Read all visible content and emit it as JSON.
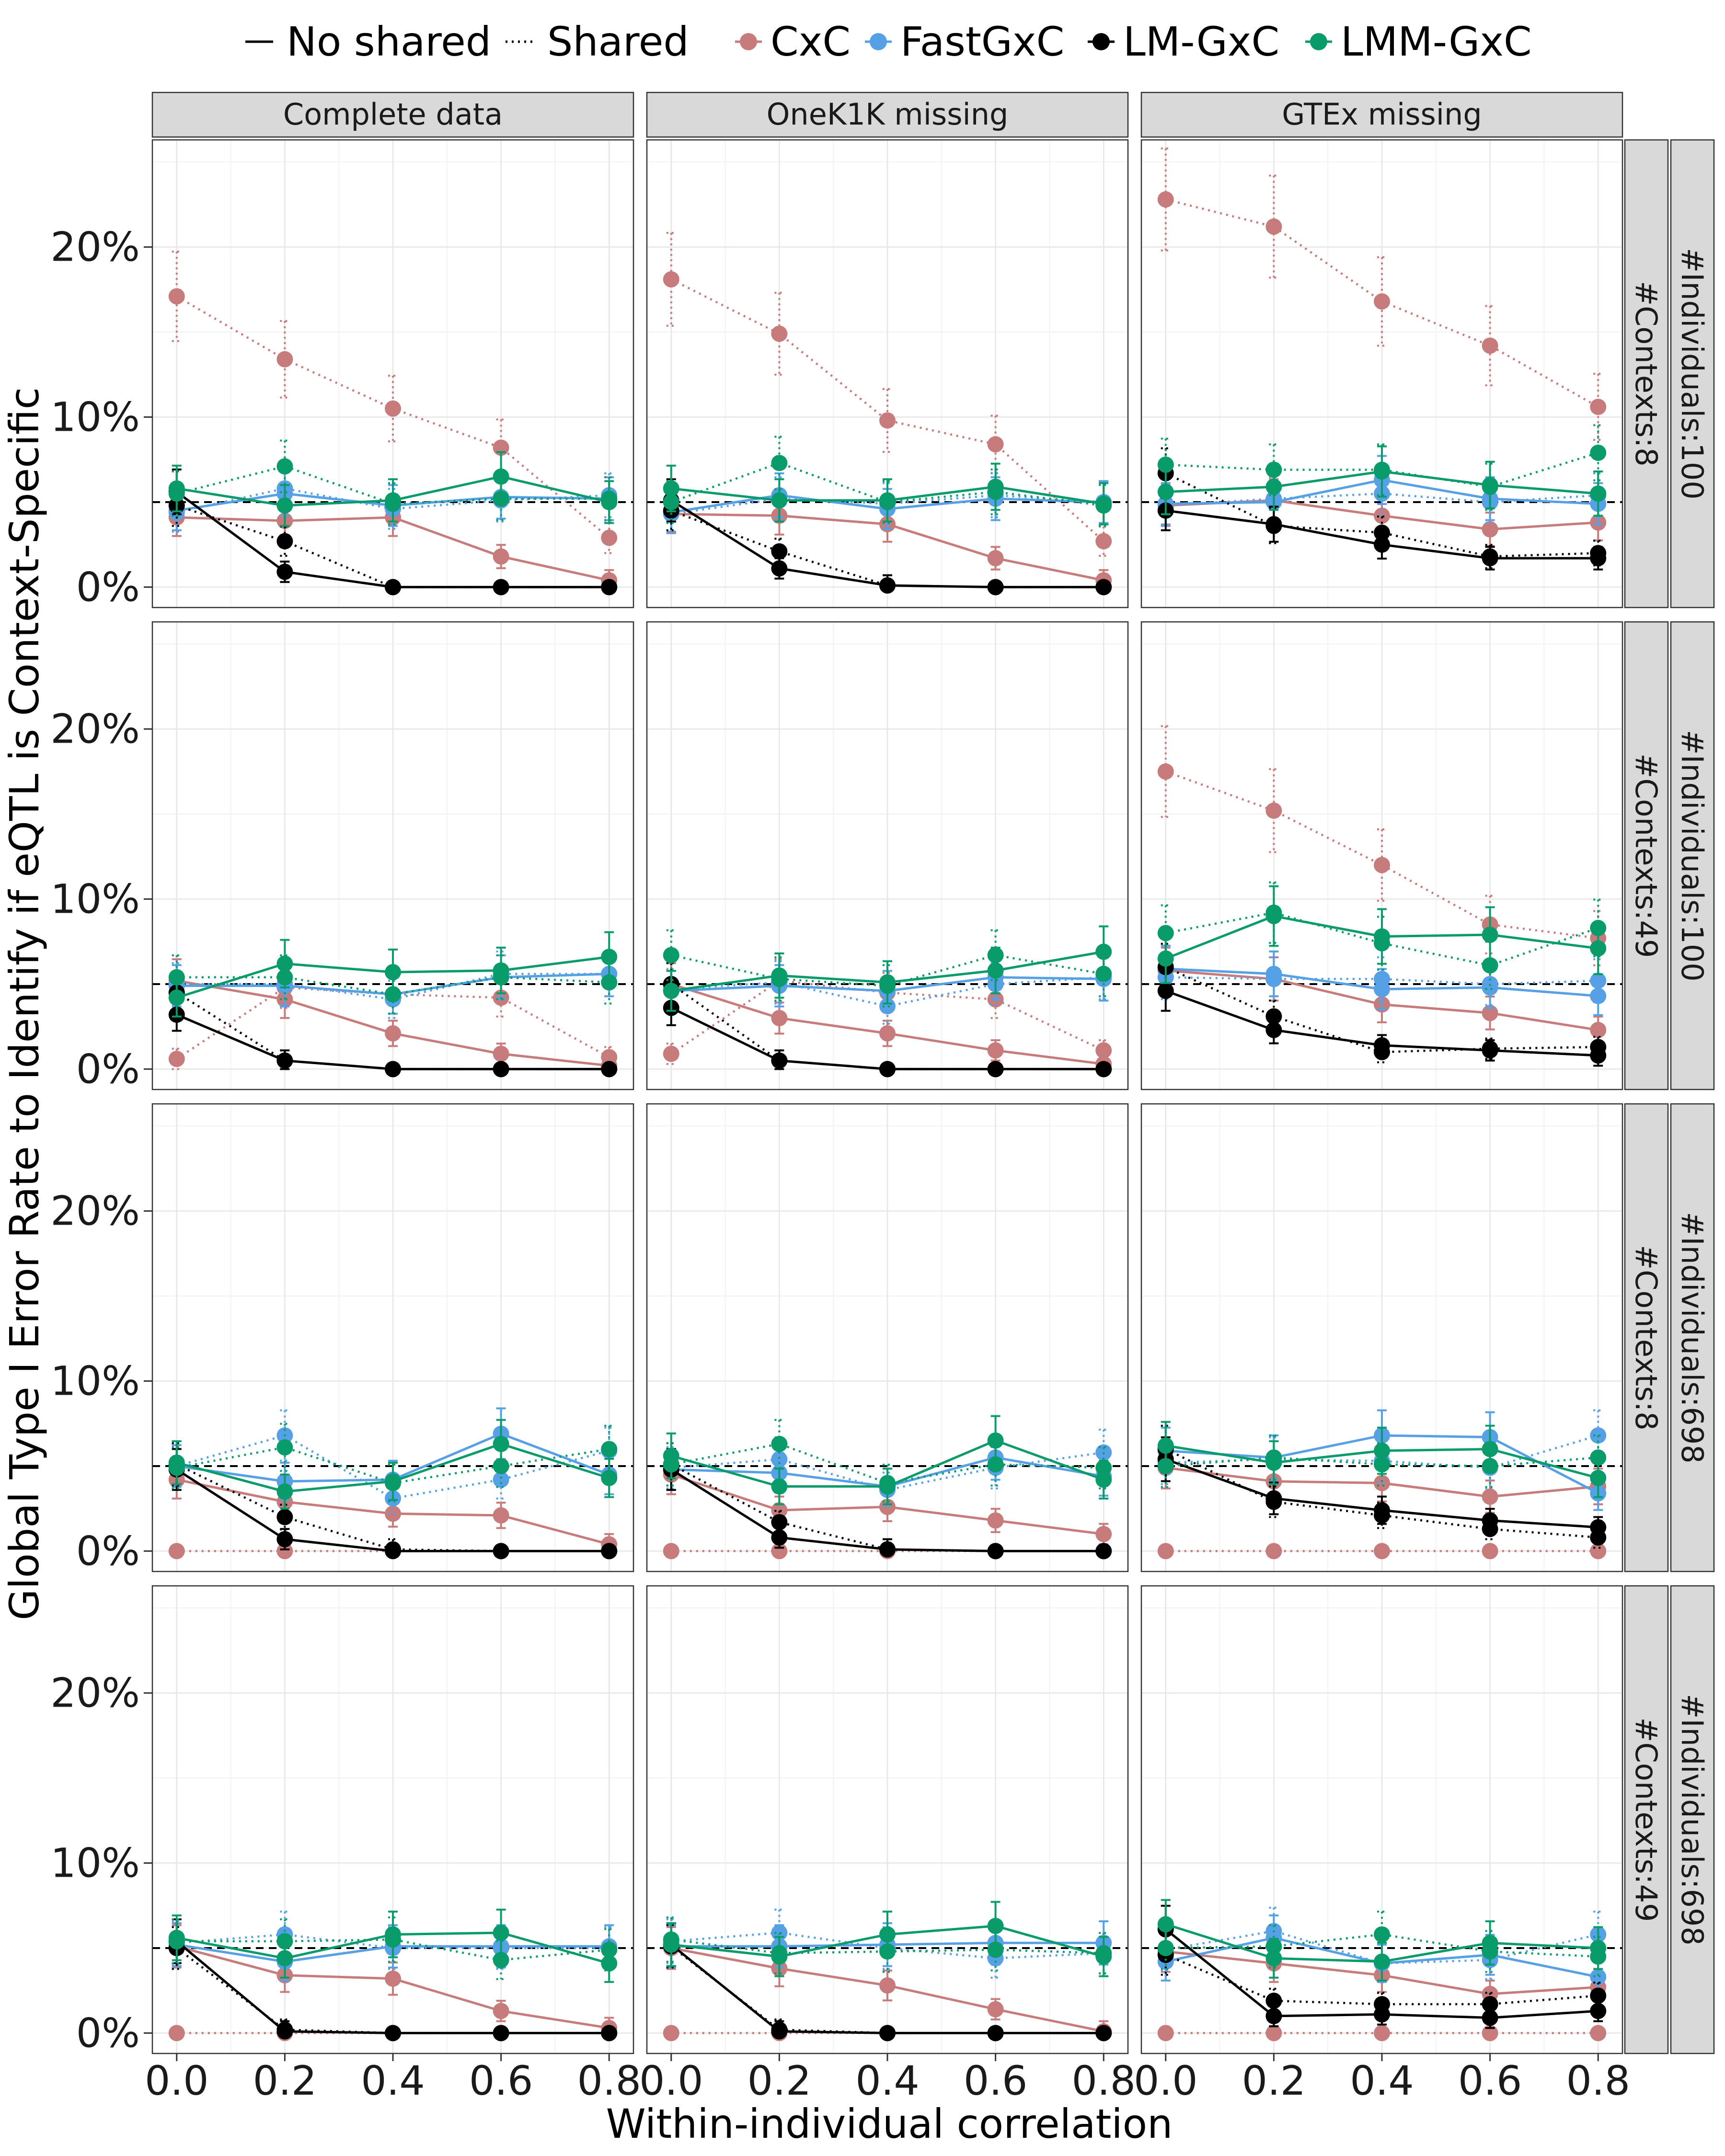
{
  "chart_data": {
    "type": "line",
    "x": [
      0.0,
      0.2,
      0.4,
      0.6,
      0.8
    ],
    "x_tick_labels": [
      "0.0",
      "0.2",
      "0.4",
      "0.6",
      "0.8"
    ],
    "y_tick_labels": [
      "0%",
      "10%",
      "20%"
    ],
    "y_ticks": [
      0,
      10,
      20
    ],
    "xlim": [
      -0.045,
      0.845
    ],
    "ylim": [
      -1.2,
      26.3
    ],
    "xlabel": "Within-individual correlation",
    "ylabel": "Global Type I Error Rate to Identify if eQTL is Context-Specific",
    "reference_line": 5,
    "grid": true,
    "legend_position": "top",
    "legend": {
      "linetypes": [
        {
          "label": "No shared",
          "dash": "solid"
        },
        {
          "label": "Shared",
          "dash": "dotted"
        }
      ],
      "methods": [
        {
          "label": "CxC",
          "color": "#c77c7b"
        },
        {
          "label": "FastGxC",
          "color": "#56a0e6"
        },
        {
          "label": "LM-GxC",
          "color": "#000000"
        },
        {
          "label": "LMM-GxC",
          "color": "#0a9b6b"
        }
      ]
    },
    "columns": [
      "Complete data",
      "OneK1K missing",
      "GTEx missing"
    ],
    "row_strips_contexts": [
      "#Contexts:8",
      "#Contexts:49",
      "#Contexts:8",
      "#Contexts:49"
    ],
    "row_strips_individuals": [
      "#Individuals:100",
      "#Individuals:100",
      "#Individuals:698",
      "#Individuals:698"
    ],
    "panels": [
      [
        {
          "CxC": {
            "no": [
              4.1,
              3.9,
              4.1,
              1.8,
              0.4
            ],
            "sh": [
              17.1,
              13.4,
              10.5,
              8.2,
              2.9
            ]
          },
          "FastGxC": {
            "no": [
              4.5,
              5.5,
              4.8,
              5.3,
              5.2
            ],
            "sh": [
              4.4,
              5.8,
              4.6,
              5.1,
              5.4
            ]
          },
          "LM-GxC": {
            "no": [
              5.6,
              0.9,
              0.0,
              0.0,
              0.0
            ],
            "sh": [
              4.8,
              2.7,
              0.0,
              0.0,
              0.0
            ]
          },
          "LMM-GxC": {
            "no": [
              5.8,
              4.8,
              5.1,
              6.5,
              5.0
            ],
            "sh": [
              5.5,
              7.1,
              4.9,
              5.2,
              5.2
            ]
          }
        },
        {
          "CxC": {
            "no": [
              4.3,
              4.2,
              3.7,
              1.7,
              0.4
            ],
            "sh": [
              18.1,
              14.9,
              9.8,
              8.4,
              2.7
            ]
          },
          "FastGxC": {
            "no": [
              4.4,
              5.4,
              4.6,
              5.2,
              5.0
            ],
            "sh": [
              4.3,
              5.2,
              4.9,
              5.4,
              5.0
            ]
          },
          "LM-GxC": {
            "no": [
              5.1,
              1.1,
              0.1,
              0.0,
              0.0
            ],
            "sh": [
              4.5,
              2.1,
              0.1,
              0.0,
              0.0
            ]
          },
          "LMM-GxC": {
            "no": [
              5.8,
              5.1,
              5.1,
              5.9,
              4.9
            ],
            "sh": [
              5.0,
              7.3,
              5.0,
              5.6,
              4.8
            ]
          }
        },
        {
          "CxC": {
            "no": [
              4.8,
              5.1,
              4.2,
              3.4,
              3.8
            ],
            "sh": [
              22.8,
              21.2,
              16.8,
              14.2,
              10.6
            ]
          },
          "FastGxC": {
            "no": [
              4.9,
              5.0,
              6.3,
              5.2,
              4.9
            ],
            "sh": [
              4.8,
              5.2,
              5.5,
              5.0,
              5.4
            ]
          },
          "LM-GxC": {
            "no": [
              4.5,
              3.7,
              2.5,
              1.7,
              1.7
            ],
            "sh": [
              6.7,
              3.6,
              3.2,
              1.8,
              2.0
            ]
          },
          "LMM-GxC": {
            "no": [
              5.6,
              5.9,
              6.8,
              6.0,
              5.5
            ],
            "sh": [
              7.2,
              6.9,
              6.9,
              5.9,
              7.9
            ]
          }
        }
      ],
      [
        {
          "CxC": {
            "no": [
              5.2,
              4.1,
              2.1,
              0.9,
              0.2
            ],
            "sh": [
              0.6,
              4.8,
              4.4,
              4.2,
              0.7
            ]
          },
          "FastGxC": {
            "no": [
              4.9,
              4.9,
              4.4,
              5.4,
              5.6
            ],
            "sh": [
              5.0,
              5.0,
              4.1,
              5.6,
              5.6
            ]
          },
          "LM-GxC": {
            "no": [
              3.2,
              0.5,
              0.0,
              0.0,
              0.0
            ],
            "sh": [
              4.5,
              0.5,
              0.0,
              0.0,
              0.0
            ]
          },
          "LMM-GxC": {
            "no": [
              4.2,
              6.2,
              5.7,
              5.8,
              6.6
            ],
            "sh": [
              5.4,
              5.4,
              4.4,
              5.4,
              5.1
            ]
          }
        },
        {
          "CxC": {
            "no": [
              5.0,
              3.0,
              2.1,
              1.1,
              0.3
            ],
            "sh": [
              0.9,
              5.2,
              4.5,
              4.1,
              1.1
            ]
          },
          "FastGxC": {
            "no": [
              4.6,
              4.9,
              4.6,
              5.4,
              5.3
            ],
            "sh": [
              4.7,
              5.1,
              3.7,
              5.0,
              5.4
            ]
          },
          "LM-GxC": {
            "no": [
              3.6,
              0.5,
              0.0,
              0.0,
              0.0
            ],
            "sh": [
              5.0,
              0.5,
              0.0,
              0.0,
              0.0
            ]
          },
          "LMM-GxC": {
            "no": [
              4.6,
              5.5,
              5.1,
              5.8,
              6.9
            ],
            "sh": [
              6.7,
              5.3,
              4.9,
              6.7,
              5.6
            ]
          }
        },
        {
          "CxC": {
            "no": [
              5.8,
              5.3,
              3.8,
              3.3,
              2.3
            ],
            "sh": [
              17.5,
              15.2,
              12.0,
              8.5,
              7.7
            ]
          },
          "FastGxC": {
            "no": [
              5.9,
              5.6,
              4.7,
              4.8,
              4.3
            ],
            "sh": [
              5.4,
              5.3,
              5.3,
              5.0,
              5.2
            ]
          },
          "LM-GxC": {
            "no": [
              4.6,
              2.3,
              1.4,
              1.1,
              0.8
            ],
            "sh": [
              6.0,
              3.1,
              1.0,
              1.2,
              1.3
            ]
          },
          "LMM-GxC": {
            "no": [
              6.5,
              9.0,
              7.8,
              7.9,
              7.1
            ],
            "sh": [
              8.0,
              9.2,
              7.4,
              6.1,
              8.3
            ]
          }
        }
      ],
      [
        {
          "CxC": {
            "no": [
              4.2,
              2.9,
              2.2,
              2.1,
              0.4
            ],
            "sh": [
              0.0,
              0.0,
              0.0,
              0.0,
              0.0
            ]
          },
          "FastGxC": {
            "no": [
              5.0,
              4.1,
              4.2,
              6.9,
              4.5
            ],
            "sh": [
              5.0,
              6.8,
              3.1,
              4.2,
              5.9
            ]
          },
          "LM-GxC": {
            "no": [
              4.8,
              0.7,
              0.0,
              0.0,
              0.0
            ],
            "sh": [
              5.1,
              2.0,
              0.1,
              0.0,
              0.0
            ]
          },
          "LMM-GxC": {
            "no": [
              5.2,
              3.5,
              4.1,
              6.3,
              4.3
            ],
            "sh": [
              4.9,
              6.1,
              4.0,
              5.0,
              6.0
            ]
          }
        },
        {
          "CxC": {
            "no": [
              4.5,
              2.4,
              2.6,
              1.8,
              1.0
            ],
            "sh": [
              0.0,
              0.0,
              0.0,
              0.0,
              0.0
            ]
          },
          "FastGxC": {
            "no": [
              4.8,
              4.6,
              3.8,
              5.5,
              4.4
            ],
            "sh": [
              4.9,
              5.4,
              3.6,
              4.9,
              5.8
            ]
          },
          "LM-GxC": {
            "no": [
              4.8,
              0.8,
              0.1,
              0.0,
              0.0
            ],
            "sh": [
              5.1,
              1.7,
              0.1,
              0.0,
              0.0
            ]
          },
          "LMM-GxC": {
            "no": [
              5.6,
              3.8,
              3.8,
              6.5,
              4.2
            ],
            "sh": [
              5.1,
              6.3,
              4.0,
              5.1,
              4.9
            ]
          }
        },
        {
          "CxC": {
            "no": [
              4.9,
              4.1,
              4.0,
              3.2,
              3.8
            ],
            "sh": [
              0.0,
              0.0,
              0.0,
              0.0,
              0.0
            ]
          },
          "FastGxC": {
            "no": [
              5.9,
              5.5,
              6.8,
              6.7,
              3.4
            ],
            "sh": [
              5.2,
              5.4,
              5.3,
              4.9,
              6.8
            ]
          },
          "LM-GxC": {
            "no": [
              5.4,
              3.1,
              2.4,
              1.8,
              1.4
            ],
            "sh": [
              6.0,
              2.9,
              2.1,
              1.3,
              0.8
            ]
          },
          "LMM-GxC": {
            "no": [
              6.2,
              5.2,
              5.9,
              6.0,
              4.3
            ],
            "sh": [
              5.0,
              5.5,
              5.1,
              5.0,
              5.5
            ]
          }
        }
      ],
      [
        {
          "CxC": {
            "no": [
              5.1,
              3.4,
              3.2,
              1.3,
              0.3
            ],
            "sh": [
              0.0,
              0.0,
              0.0,
              0.0,
              0.0
            ]
          },
          "FastGxC": {
            "no": [
              5.2,
              4.2,
              5.1,
              5.1,
              5.1
            ],
            "sh": [
              5.3,
              5.8,
              5.0,
              5.0,
              5.0
            ]
          },
          "LM-GxC": {
            "no": [
              5.4,
              0.1,
              0.0,
              0.0,
              0.0
            ],
            "sh": [
              5.0,
              0.2,
              0.0,
              0.0,
              0.0
            ]
          },
          "LMM-GxC": {
            "no": [
              5.6,
              4.4,
              5.8,
              5.9,
              4.1
            ],
            "sh": [
              5.4,
              5.4,
              5.5,
              4.3,
              4.9
            ]
          }
        },
        {
          "CxC": {
            "no": [
              5.0,
              3.8,
              2.8,
              1.4,
              0.1
            ],
            "sh": [
              0.0,
              0.0,
              0.0,
              0.0,
              0.0
            ]
          },
          "FastGxC": {
            "no": [
              5.1,
              5.1,
              5.2,
              5.3,
              5.3
            ],
            "sh": [
              5.4,
              5.9,
              5.0,
              4.4,
              4.7
            ]
          },
          "LM-GxC": {
            "no": [
              5.2,
              0.1,
              0.0,
              0.0,
              0.0
            ],
            "sh": [
              5.1,
              0.2,
              0.0,
              0.0,
              0.0
            ]
          },
          "LMM-GxC": {
            "no": [
              5.2,
              4.5,
              5.8,
              6.3,
              4.5
            ],
            "sh": [
              5.5,
              4.7,
              4.8,
              4.9,
              4.7
            ]
          }
        },
        {
          "CxC": {
            "no": [
              4.8,
              4.1,
              3.4,
              2.3,
              2.7
            ],
            "sh": [
              0.0,
              0.0,
              0.0,
              0.0,
              0.0
            ]
          },
          "FastGxC": {
            "no": [
              4.2,
              5.6,
              4.1,
              4.6,
              3.3
            ],
            "sh": [
              4.9,
              6.0,
              4.1,
              4.3,
              5.8
            ]
          },
          "LM-GxC": {
            "no": [
              6.1,
              1.0,
              1.1,
              0.9,
              1.3
            ],
            "sh": [
              4.6,
              1.9,
              1.7,
              1.7,
              2.2
            ]
          },
          "LMM-GxC": {
            "no": [
              6.4,
              4.4,
              4.2,
              5.3,
              5.0
            ],
            "sh": [
              5.0,
              5.1,
              5.8,
              4.8,
              4.5
            ]
          }
        }
      ]
    ]
  }
}
